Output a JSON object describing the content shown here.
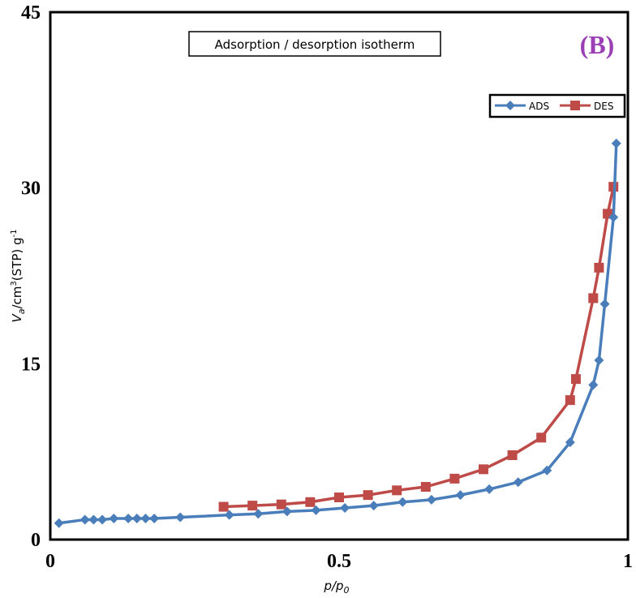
{
  "chart_data": {
    "type": "line",
    "title": "Adsorption / desorption isotherm",
    "panel_label": "(B)",
    "panel_label_color": "#9b3fb5",
    "xlabel": "p/p0",
    "ylabel": "Va/cm3(STP) g-1",
    "xlim": [
      0,
      1
    ],
    "ylim": [
      0,
      45
    ],
    "x_ticks": [
      0,
      0.5,
      1
    ],
    "x_tick_labels": [
      "0",
      "0.5",
      "1"
    ],
    "y_ticks": [
      0,
      15,
      30,
      45
    ],
    "y_tick_labels": [
      "0",
      "15",
      "30",
      "45"
    ],
    "grid": false,
    "legend_position": "top-right",
    "series": [
      {
        "name": "ADS",
        "color": "#4a7ebb",
        "marker": "diamond",
        "x": [
          0.015,
          0.06,
          0.075,
          0.09,
          0.11,
          0.135,
          0.15,
          0.165,
          0.18,
          0.225,
          0.31,
          0.36,
          0.41,
          0.46,
          0.51,
          0.56,
          0.61,
          0.66,
          0.71,
          0.76,
          0.81,
          0.86,
          0.9,
          0.94,
          0.95,
          0.96,
          0.975,
          0.98
        ],
        "y": [
          1.4,
          1.7,
          1.7,
          1.7,
          1.8,
          1.8,
          1.8,
          1.8,
          1.8,
          1.9,
          2.1,
          2.2,
          2.4,
          2.5,
          2.7,
          2.9,
          3.2,
          3.4,
          3.8,
          4.3,
          4.9,
          5.9,
          8.3,
          13.2,
          15.3,
          20.1,
          27.5,
          33.8
        ]
      },
      {
        "name": "DES",
        "color": "#be4b48",
        "marker": "square",
        "x": [
          0.3,
          0.35,
          0.4,
          0.45,
          0.5,
          0.55,
          0.6,
          0.65,
          0.7,
          0.75,
          0.8,
          0.85,
          0.9,
          0.91,
          0.94,
          0.95,
          0.965,
          0.975
        ],
        "y": [
          2.8,
          2.9,
          3.0,
          3.2,
          3.6,
          3.8,
          4.2,
          4.5,
          5.2,
          6.0,
          7.2,
          8.7,
          11.9,
          13.7,
          20.6,
          23.2,
          27.8,
          30.1
        ]
      }
    ]
  }
}
